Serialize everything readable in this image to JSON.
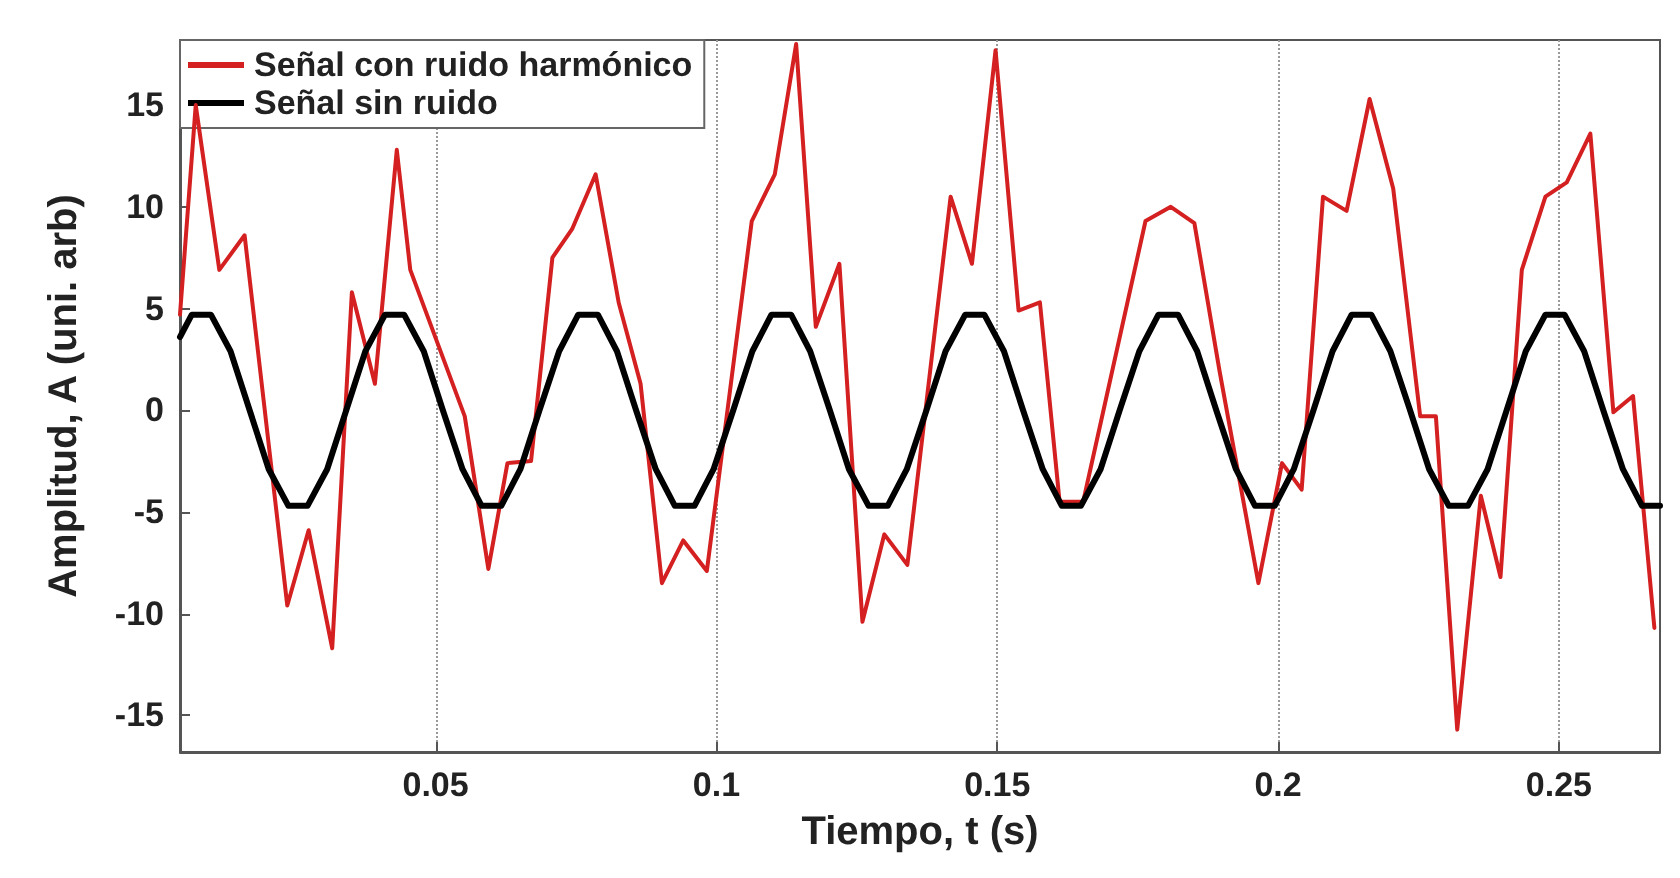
{
  "chart_data": {
    "type": "line",
    "xlabel": "Tiempo, t (s)",
    "ylabel": "Amplitud, A (uni. arb)",
    "xlim": [
      0.0045,
      0.268
    ],
    "ylim": [
      -16.8,
      18.2
    ],
    "xticks": [
      0.05,
      0.1,
      0.15,
      0.2,
      0.25
    ],
    "yticks": [
      -15,
      -10,
      -5,
      0,
      5,
      10,
      15
    ],
    "grid": "x",
    "legend": "top left",
    "marker": "none",
    "line_style": "solid",
    "series": [
      {
        "name": "Señal con ruido harmónico",
        "color": "#d42020",
        "x": [
          0.0045,
          0.0073,
          0.0115,
          0.016,
          0.0236,
          0.0274,
          0.0316,
          0.0351,
          0.0392,
          0.0431,
          0.0455,
          0.0552,
          0.0594,
          0.0628,
          0.067,
          0.0708,
          0.0743,
          0.0785,
          0.0826,
          0.0865,
          0.0903,
          0.0941,
          0.0983,
          0.1063,
          0.1104,
          0.1142,
          0.1177,
          0.1219,
          0.126,
          0.1299,
          0.134,
          0.1417,
          0.1455,
          0.1497,
          0.1538,
          0.1576,
          0.1611,
          0.1653,
          0.1764,
          0.1809,
          0.1851,
          0.1896,
          0.1965,
          0.2007,
          0.2042,
          0.208,
          0.2122,
          0.2163,
          0.2205,
          0.2253,
          0.2281,
          0.2319,
          0.2361,
          0.2396,
          0.2434,
          0.2476,
          0.2514,
          0.2556,
          0.2597,
          0.2632,
          0.267
        ],
        "values": [
          4.7,
          15,
          6.9,
          8.6,
          -9.6,
          -5.9,
          -11.7,
          5.8,
          1.3,
          12.8,
          6.9,
          -0.3,
          -7.8,
          -2.6,
          -2.5,
          7.5,
          8.9,
          11.6,
          5.3,
          1.3,
          -8.5,
          -6.4,
          -7.9,
          9.3,
          11.6,
          18,
          4.1,
          7.2,
          -10.4,
          -6.1,
          -7.6,
          10.5,
          7.2,
          17.7,
          4.9,
          5.3,
          -4.5,
          -4.5,
          9.3,
          10,
          9.2,
          1.9,
          -8.5,
          -2.6,
          -3.9,
          10.5,
          9.8,
          15.3,
          10.9,
          -0.3,
          -0.3,
          -15.7,
          -4.2,
          -8.2,
          6.9,
          10.5,
          11.2,
          13.6,
          -0.1,
          0.7,
          -10.7
        ]
      },
      {
        "name": "Señal sin ruido",
        "color": "#000000",
        "x": [
          0.0045,
          0.0066,
          0.01,
          0.0135,
          0.0169,
          0.0203,
          0.0238,
          0.0272,
          0.0307,
          0.0341,
          0.0375,
          0.041,
          0.0444,
          0.0479,
          0.0513,
          0.0548,
          0.0582,
          0.0617,
          0.0651,
          0.0685,
          0.072,
          0.0754,
          0.0789,
          0.0823,
          0.0857,
          0.0892,
          0.0926,
          0.0961,
          0.0995,
          0.103,
          0.1064,
          0.1098,
          0.1133,
          0.1167,
          0.1202,
          0.1236,
          0.1271,
          0.1305,
          0.1339,
          0.1374,
          0.1408,
          0.1443,
          0.1477,
          0.1512,
          0.1546,
          0.1581,
          0.1615,
          0.1649,
          0.1684,
          0.1718,
          0.1753,
          0.1787,
          0.1822,
          0.1856,
          0.189,
          0.1925,
          0.1959,
          0.1994,
          0.2028,
          0.2063,
          0.2097,
          0.2131,
          0.2166,
          0.22,
          0.2235,
          0.2269,
          0.2304,
          0.2338,
          0.2373,
          0.2407,
          0.2441,
          0.2476,
          0.251,
          0.2545,
          0.2579,
          0.2614,
          0.2648,
          0.268
        ],
        "values": [
          3.6,
          4.7,
          4.7,
          2.9,
          0,
          -2.9,
          -4.7,
          -4.7,
          -2.9,
          0,
          2.9,
          4.7,
          4.7,
          2.9,
          0,
          -2.9,
          -4.7,
          -4.7,
          -2.9,
          0,
          2.9,
          4.7,
          4.7,
          2.9,
          0,
          -2.9,
          -4.7,
          -4.7,
          -2.9,
          0,
          2.9,
          4.7,
          4.7,
          2.9,
          0,
          -2.9,
          -4.7,
          -4.7,
          -2.9,
          0,
          2.9,
          4.7,
          4.7,
          2.9,
          0,
          -2.9,
          -4.7,
          -4.7,
          -2.9,
          0,
          2.9,
          4.7,
          4.7,
          2.9,
          0,
          -2.9,
          -4.7,
          -4.7,
          -2.9,
          0,
          2.9,
          4.7,
          4.7,
          2.9,
          0,
          -2.9,
          -4.7,
          -4.7,
          -2.9,
          0,
          2.9,
          4.7,
          4.7,
          2.9,
          0,
          -2.9,
          -4.7,
          -4.7
        ]
      }
    ]
  }
}
